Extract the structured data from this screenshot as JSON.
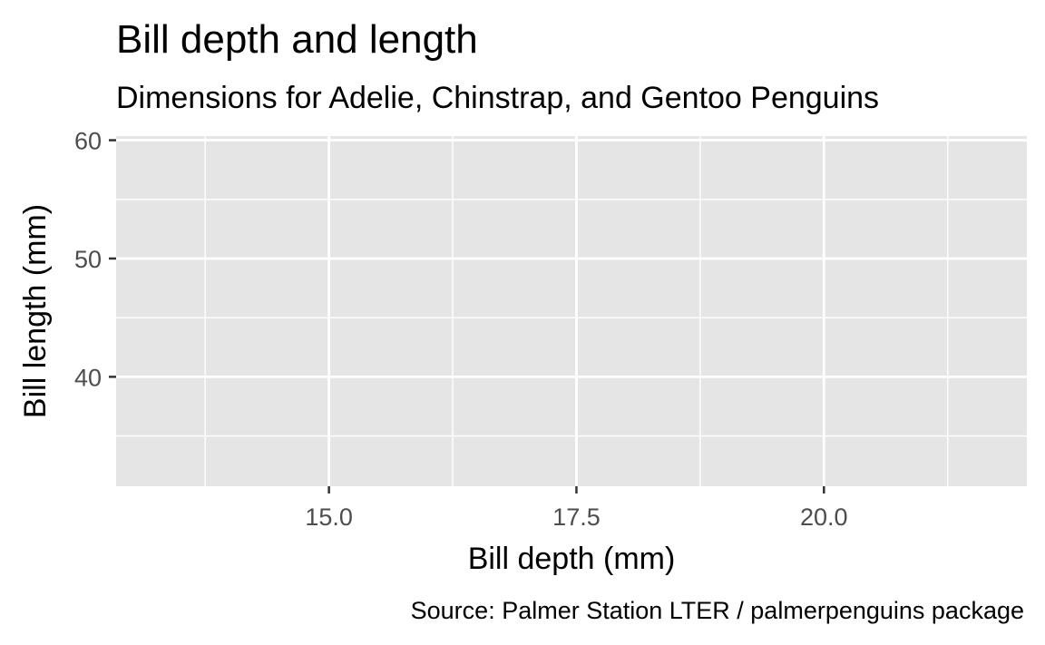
{
  "chart_data": {
    "type": "scatter",
    "title": "Bill depth and length",
    "subtitle": "Dimensions for Adelie, Chinstrap, and Gentoo Penguins",
    "caption": "Source: Palmer Station LTER / palmerpenguins package",
    "xlabel": "Bill depth (mm)",
    "ylabel": "Bill length (mm)",
    "xlim": [
      12.85,
      22.05
    ],
    "ylim": [
      30.75,
      60.35
    ],
    "x_ticks": [
      15.0,
      17.5,
      20.0
    ],
    "x_tick_labels": [
      "15.0",
      "17.5",
      "20.0"
    ],
    "x_minor_ticks": [
      13.75,
      16.25,
      18.75,
      21.25
    ],
    "y_ticks": [
      40,
      50,
      60
    ],
    "y_tick_labels": [
      "40",
      "50",
      "60"
    ],
    "y_minor_ticks": [
      35,
      45,
      55
    ],
    "grid": true,
    "points": [],
    "colors": {
      "panel_background": "#e5e5e5",
      "grid": "#ffffff",
      "tick_label": "#4d4d4d",
      "tick_mark": "#333333",
      "text": "#000000"
    }
  }
}
